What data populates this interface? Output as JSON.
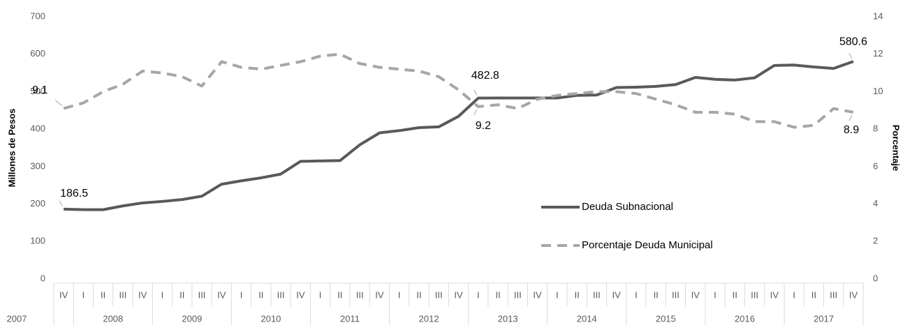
{
  "chart_data": {
    "type": "line",
    "y_label": "Millones de Pesos",
    "y2_label": "Porcentaje",
    "categories": [
      "IV",
      "I",
      "II",
      "III",
      "IV",
      "I",
      "II",
      "III",
      "IV",
      "I",
      "II",
      "III",
      "IV",
      "I",
      "II",
      "III",
      "IV",
      "I",
      "II",
      "III",
      "IV",
      "I",
      "II",
      "III",
      "IV",
      "I",
      "II",
      "III",
      "IV",
      "I",
      "II",
      "III",
      "IV",
      "I",
      "II",
      "III",
      "IV",
      "I",
      "II",
      "III",
      "IV"
    ],
    "years": [
      "2007",
      "2008",
      "2009",
      "2010",
      "2011",
      "2012",
      "2013",
      "2014",
      "2015",
      "2016",
      "2017"
    ],
    "ylim": [
      0,
      700
    ],
    "yticks": [
      0,
      100,
      200,
      300,
      400,
      500,
      600,
      700
    ],
    "y2lim": [
      0,
      14
    ],
    "y2ticks": [
      0,
      2,
      4,
      6,
      8,
      10,
      12,
      14
    ],
    "series": [
      {
        "name": "Deuda Subnacional",
        "color": "#595959",
        "dashed": false,
        "values": [
          186.5,
          185,
          185,
          195,
          203,
          207,
          212,
          221,
          253,
          262,
          270,
          280,
          314,
          315,
          316,
          358,
          390,
          396,
          404,
          406,
          434,
          482.8,
          483,
          483,
          483,
          483,
          490,
          491,
          511,
          512,
          514,
          519,
          538,
          533,
          531,
          537,
          570,
          571,
          566,
          562,
          580.6
        ],
        "value_labels": [
          "186.5",
          null,
          null,
          null,
          null,
          null,
          null,
          null,
          null,
          null,
          null,
          null,
          null,
          null,
          null,
          null,
          null,
          null,
          null,
          null,
          null,
          "482.8",
          null,
          null,
          null,
          null,
          null,
          null,
          null,
          null,
          null,
          null,
          null,
          null,
          null,
          null,
          null,
          null,
          null,
          null,
          "580.6"
        ]
      },
      {
        "name": "Porcentaje Deuda Municipal",
        "color": "#a6a6a6",
        "dashed": true,
        "axis": "y2",
        "values": [
          9.1,
          9.4,
          10.0,
          10.4,
          11.1,
          11.0,
          10.8,
          10.3,
          11.6,
          11.3,
          11.2,
          11.4,
          11.6,
          11.9,
          12.0,
          11.5,
          11.3,
          11.2,
          11.1,
          10.8,
          10.1,
          9.2,
          9.3,
          9.1,
          9.6,
          9.8,
          9.9,
          10.0,
          10.0,
          9.9,
          9.6,
          9.3,
          8.9,
          8.9,
          8.8,
          8.4,
          8.4,
          8.1,
          8.2,
          9.1,
          8.9
        ],
        "value_labels": [
          "9.1",
          null,
          null,
          null,
          null,
          null,
          null,
          null,
          null,
          null,
          null,
          null,
          null,
          null,
          null,
          null,
          null,
          null,
          null,
          null,
          null,
          "9.2",
          null,
          null,
          null,
          null,
          null,
          null,
          null,
          null,
          null,
          null,
          null,
          null,
          null,
          null,
          null,
          null,
          null,
          null,
          "8.9"
        ]
      }
    ]
  }
}
